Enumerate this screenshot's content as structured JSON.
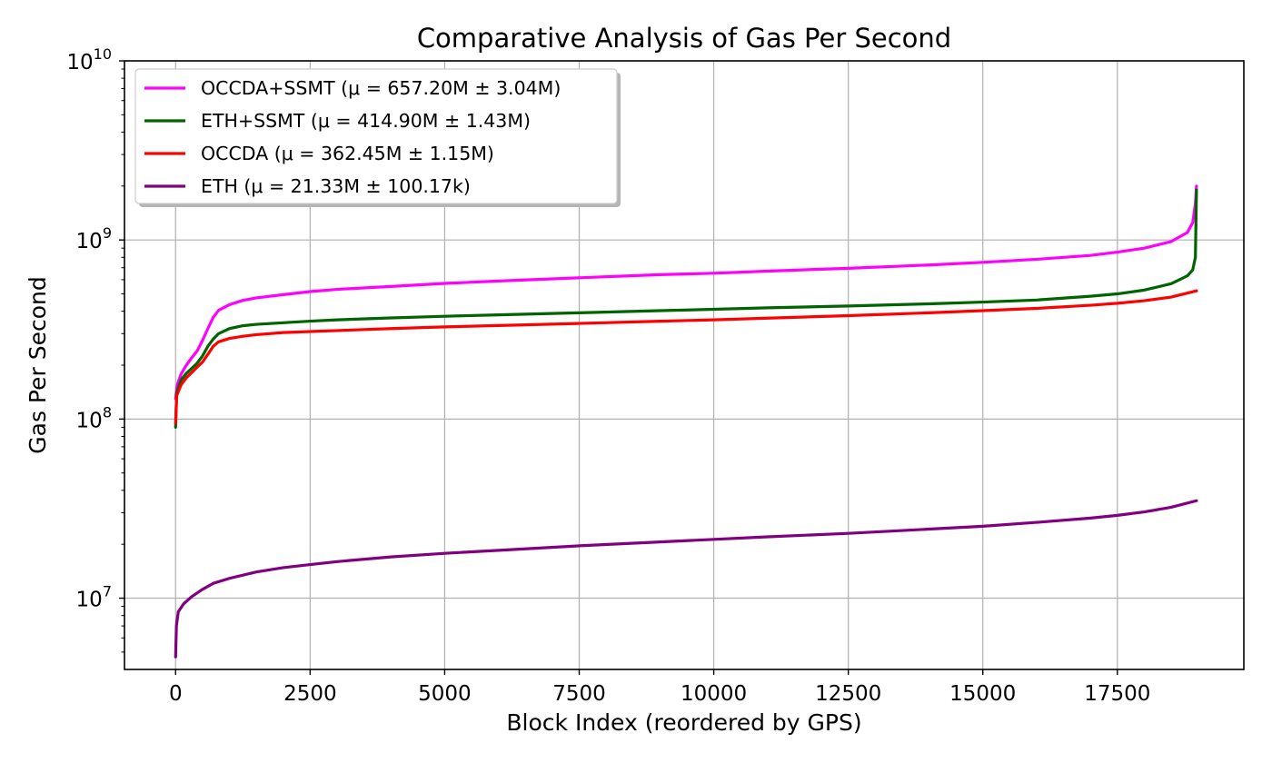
{
  "chart_data": {
    "type": "line",
    "title": "Comparative Analysis of Gas Per Second",
    "xlabel": "Block Index (reordered by GPS)",
    "ylabel": "Gas Per Second",
    "yscale": "log",
    "xlim": [
      -950,
      19850
    ],
    "ylim": [
      4000000,
      10000000000
    ],
    "xticks": [
      0,
      2500,
      5000,
      7500,
      10000,
      12500,
      15000,
      17500
    ],
    "xtick_labels": [
      "0",
      "2500",
      "5000",
      "7500",
      "10000",
      "12500",
      "15000",
      "17500"
    ],
    "yticks": [
      10000000,
      100000000,
      1000000000,
      10000000000
    ],
    "ytick_labels": [
      {
        "base": "10",
        "exp": "7"
      },
      {
        "base": "10",
        "exp": "8"
      },
      {
        "base": "10",
        "exp": "9"
      },
      {
        "base": "10",
        "exp": "10"
      }
    ],
    "grid": true,
    "legend_position": "upper-left",
    "series": [
      {
        "name": "OCCDA+SSMT (μ = 657.20M ± 3.04M)",
        "color": "#ff00ff",
        "points": [
          [
            0,
            130000000
          ],
          [
            30,
            155000000
          ],
          [
            100,
            178000000
          ],
          [
            200,
            200000000
          ],
          [
            300,
            220000000
          ],
          [
            400,
            240000000
          ],
          [
            500,
            275000000
          ],
          [
            600,
            320000000
          ],
          [
            700,
            370000000
          ],
          [
            800,
            405000000
          ],
          [
            1000,
            435000000
          ],
          [
            1250,
            460000000
          ],
          [
            1500,
            475000000
          ],
          [
            2000,
            495000000
          ],
          [
            2500,
            515000000
          ],
          [
            3000,
            530000000
          ],
          [
            4000,
            550000000
          ],
          [
            5000,
            572000000
          ],
          [
            6000,
            590000000
          ],
          [
            7500,
            615000000
          ],
          [
            9000,
            640000000
          ],
          [
            10000,
            652000000
          ],
          [
            11000,
            670000000
          ],
          [
            12500,
            695000000
          ],
          [
            14000,
            725000000
          ],
          [
            15000,
            750000000
          ],
          [
            16000,
            780000000
          ],
          [
            17000,
            820000000
          ],
          [
            17500,
            855000000
          ],
          [
            18000,
            900000000
          ],
          [
            18500,
            980000000
          ],
          [
            18800,
            1100000000
          ],
          [
            18900,
            1250000000
          ],
          [
            18950,
            1600000000
          ],
          [
            18970,
            2000000000
          ]
        ]
      },
      {
        "name": "ETH+SSMT (μ = 414.90M ± 1.43M)",
        "color": "#006400",
        "points": [
          [
            0,
            90000000
          ],
          [
            20,
            140000000
          ],
          [
            100,
            165000000
          ],
          [
            200,
            180000000
          ],
          [
            300,
            192000000
          ],
          [
            400,
            205000000
          ],
          [
            500,
            225000000
          ],
          [
            600,
            255000000
          ],
          [
            700,
            280000000
          ],
          [
            800,
            300000000
          ],
          [
            1000,
            320000000
          ],
          [
            1250,
            332000000
          ],
          [
            1500,
            338000000
          ],
          [
            2000,
            345000000
          ],
          [
            2500,
            352000000
          ],
          [
            3000,
            358000000
          ],
          [
            4000,
            367000000
          ],
          [
            5000,
            375000000
          ],
          [
            6000,
            382000000
          ],
          [
            7500,
            392000000
          ],
          [
            9000,
            403000000
          ],
          [
            10000,
            410000000
          ],
          [
            11000,
            418000000
          ],
          [
            12500,
            428000000
          ],
          [
            14000,
            440000000
          ],
          [
            15000,
            450000000
          ],
          [
            16000,
            462000000
          ],
          [
            17000,
            485000000
          ],
          [
            17500,
            500000000
          ],
          [
            18000,
            525000000
          ],
          [
            18500,
            570000000
          ],
          [
            18800,
            630000000
          ],
          [
            18900,
            680000000
          ],
          [
            18950,
            800000000
          ],
          [
            18970,
            1900000000
          ]
        ]
      },
      {
        "name": "OCCDA (μ = 362.45M ± 1.15M)",
        "color": "#ff0000",
        "points": [
          [
            0,
            95000000
          ],
          [
            20,
            135000000
          ],
          [
            100,
            155000000
          ],
          [
            200,
            170000000
          ],
          [
            300,
            182000000
          ],
          [
            400,
            195000000
          ],
          [
            500,
            208000000
          ],
          [
            600,
            230000000
          ],
          [
            700,
            255000000
          ],
          [
            800,
            270000000
          ],
          [
            1000,
            282000000
          ],
          [
            1250,
            290000000
          ],
          [
            1500,
            296000000
          ],
          [
            2000,
            304000000
          ],
          [
            2500,
            308000000
          ],
          [
            3000,
            312000000
          ],
          [
            4000,
            320000000
          ],
          [
            5000,
            327000000
          ],
          [
            6000,
            333000000
          ],
          [
            7500,
            342000000
          ],
          [
            9000,
            352000000
          ],
          [
            10000,
            358000000
          ],
          [
            11000,
            366000000
          ],
          [
            12500,
            378000000
          ],
          [
            14000,
            392000000
          ],
          [
            15000,
            403000000
          ],
          [
            16000,
            415000000
          ],
          [
            17000,
            432000000
          ],
          [
            17500,
            443000000
          ],
          [
            18000,
            458000000
          ],
          [
            18500,
            480000000
          ],
          [
            18970,
            520000000
          ]
        ]
      },
      {
        "name": "ETH (μ = 21.33M ± 100.17k)",
        "color": "#800080",
        "points": [
          [
            0,
            4700000
          ],
          [
            15,
            7000000
          ],
          [
            50,
            8400000
          ],
          [
            150,
            9300000
          ],
          [
            300,
            10200000
          ],
          [
            500,
            11200000
          ],
          [
            700,
            12100000
          ],
          [
            1000,
            12900000
          ],
          [
            1500,
            14000000
          ],
          [
            2000,
            14800000
          ],
          [
            2500,
            15400000
          ],
          [
            3000,
            16000000
          ],
          [
            4000,
            17000000
          ],
          [
            5000,
            17800000
          ],
          [
            6000,
            18500000
          ],
          [
            7500,
            19600000
          ],
          [
            9000,
            20600000
          ],
          [
            10000,
            21300000
          ],
          [
            11000,
            22000000
          ],
          [
            12500,
            23000000
          ],
          [
            14000,
            24300000
          ],
          [
            15000,
            25200000
          ],
          [
            16000,
            26500000
          ],
          [
            17000,
            28000000
          ],
          [
            17500,
            29000000
          ],
          [
            18000,
            30300000
          ],
          [
            18500,
            32200000
          ],
          [
            18970,
            35000000
          ]
        ]
      }
    ]
  }
}
